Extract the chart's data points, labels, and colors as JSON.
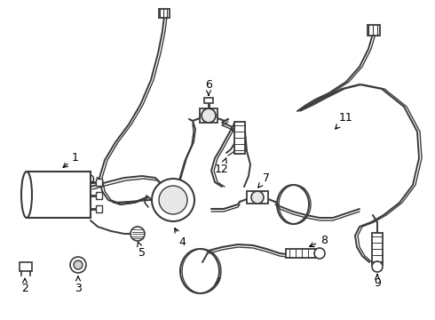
{
  "background_color": "#ffffff",
  "line_color": "#3a3a3a",
  "line_width": 1.4,
  "label_fontsize": 9,
  "fig_width": 4.9,
  "fig_height": 3.6,
  "dpi": 100
}
